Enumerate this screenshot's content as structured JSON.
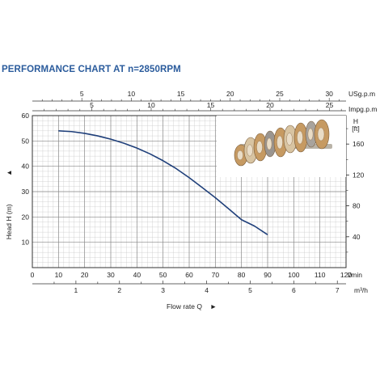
{
  "chart_data": {
    "type": "line",
    "title": "PERFORMANCE CHART AT n=2850RPM",
    "ylabel": "Head H (m)",
    "ylabel_arrow": "▲",
    "xlabel": "Flow rate Q",
    "xlabel_arrow": "►",
    "grid": true,
    "axes": {
      "lmin": {
        "unit": "l/min",
        "range": [
          0,
          120
        ],
        "ticks": [
          0,
          10,
          20,
          30,
          40,
          50,
          60,
          70,
          80,
          90,
          100,
          110,
          120
        ]
      },
      "m3h": {
        "unit": "m³/h",
        "ticks": [
          1,
          2,
          3,
          4,
          5,
          6,
          7
        ]
      },
      "usgpm": {
        "unit": "USg.p.m",
        "ticks": [
          5,
          10,
          15,
          20,
          25,
          30
        ]
      },
      "impgpm": {
        "unit": "Impg.p.m",
        "ticks": [
          5,
          10,
          15,
          20,
          25
        ]
      },
      "head_m": {
        "unit": "Head H (m)",
        "range": [
          0,
          60
        ],
        "ticks": [
          10,
          20,
          30,
          40,
          50,
          60
        ]
      },
      "head_ft": {
        "unit_line1": "H",
        "unit_line2": "[ft]",
        "ticks": [
          40,
          80,
          120,
          160
        ]
      }
    },
    "series": [
      {
        "color": "#1f3f7a",
        "x_lmin": [
          10,
          15,
          20,
          25,
          30,
          35,
          40,
          45,
          50,
          55,
          60,
          65,
          70,
          75,
          80,
          85,
          90
        ],
        "y_head_m": [
          54,
          53.7,
          53,
          52,
          50.7,
          49.1,
          47.2,
          44.9,
          42.2,
          39.1,
          35.5,
          31.6,
          27.6,
          23.3,
          18.9,
          16.4,
          13
        ]
      }
    ]
  },
  "inset_image": {
    "subject": "pump impeller stack photo"
  }
}
